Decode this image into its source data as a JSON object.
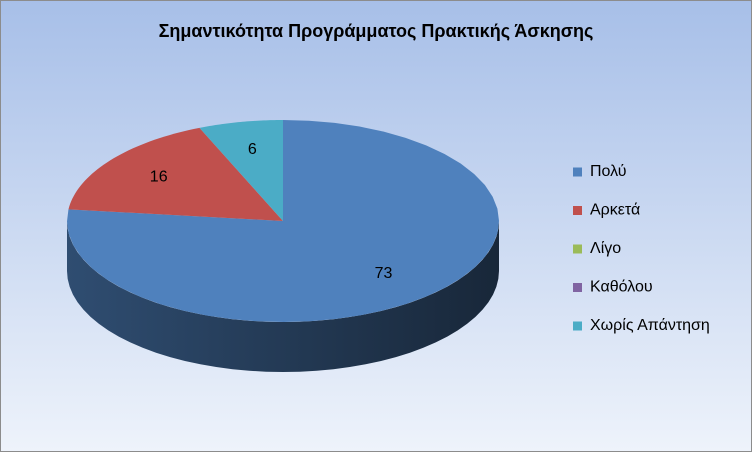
{
  "chart_data": {
    "type": "pie3d",
    "title": "Σημαντικότητα Προγράμματος Πρακτικής Άσκησης",
    "categories": [
      "Πολύ",
      "Αρκετά",
      "Λίγο",
      "Καθόλου",
      "Χωρίς Απάντηση"
    ],
    "values": [
      73,
      16,
      0,
      0,
      6
    ],
    "colors": [
      "#4f81bd",
      "#c0504d",
      "#9bbb59",
      "#8064a2",
      "#4bacc6"
    ],
    "legend": "right"
  }
}
